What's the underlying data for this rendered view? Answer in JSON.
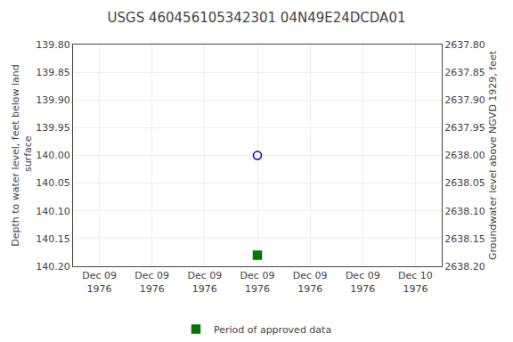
{
  "chart_data": {
    "type": "scatter",
    "title": "USGS 460456105342301 04N49E24DCDA01",
    "ylabel": "Depth to water level, feet below land\n surface",
    "y2label": "Groundwater level above NGVD 1929, feet",
    "categories": [
      "Dec 09\n1976",
      "Dec 09\n1976",
      "Dec 09\n1976",
      "Dec 09\n1976",
      "Dec 09\n1976",
      "Dec 09\n1976",
      "Dec 10\n1976"
    ],
    "series": [
      {
        "color": "#0000bb",
        "marker": "circle-open",
        "values": [
          null,
          null,
          null,
          140.0,
          null,
          null,
          null
        ]
      },
      {
        "name": "Period of approved data",
        "color": "#007700",
        "marker": "square",
        "values": [
          null,
          null,
          null,
          140.18,
          null,
          null,
          null
        ]
      }
    ],
    "ylim": [
      140.2,
      139.8
    ],
    "yticks": [
      {
        "value": 139.8,
        "label": "139.80"
      },
      {
        "value": 139.85,
        "label": "139.85"
      },
      {
        "value": 139.9,
        "label": "139.90"
      },
      {
        "value": 139.95,
        "label": "139.95"
      },
      {
        "value": 140.0,
        "label": "140.00"
      },
      {
        "value": 140.05,
        "label": "140.05"
      },
      {
        "value": 140.1,
        "label": "140.10"
      },
      {
        "value": 140.15,
        "label": "140.15"
      },
      {
        "value": 140.2,
        "label": "140.20"
      }
    ],
    "y2lim": [
      2638.2,
      2637.8
    ],
    "y2ticks": [
      {
        "value": 2638.2,
        "label": "2638.20"
      },
      {
        "value": 2638.15,
        "label": "2638.15"
      },
      {
        "value": 2638.1,
        "label": "2638.10"
      },
      {
        "value": 2638.05,
        "label": "2638.05"
      },
      {
        "value": 2638.0,
        "label": "2638.00"
      },
      {
        "value": 2637.95,
        "label": "2637.95"
      },
      {
        "value": 2637.9,
        "label": "2637.90"
      },
      {
        "value": 2637.85,
        "label": "2637.85"
      },
      {
        "value": 2637.8,
        "label": "2637.80"
      }
    ],
    "grid": true,
    "legend": "bottom"
  }
}
